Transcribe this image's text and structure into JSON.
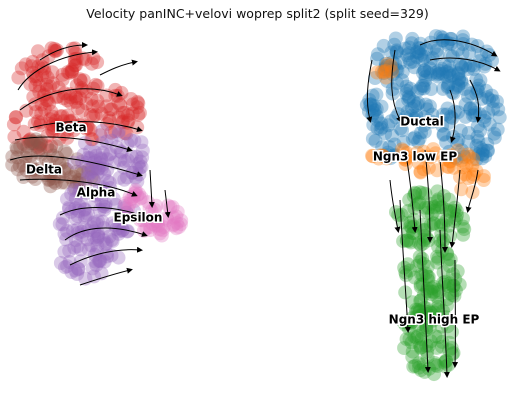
{
  "chart_data": {
    "type": "scatter",
    "title": "Velocity panINC+velovi woprep split2 (split seed=329)",
    "xlabel": "",
    "ylabel": "",
    "grid": false,
    "overlay": "velocity streamlines with arrows",
    "clusters": [
      {
        "name": "Beta",
        "color": "#d62728",
        "label_pos": [
          71,
          128
        ]
      },
      {
        "name": "Delta",
        "color": "#8c564b",
        "label_pos": [
          44,
          170
        ]
      },
      {
        "name": "Alpha",
        "color": "#9467bd",
        "label_pos": [
          96,
          193
        ]
      },
      {
        "name": "Epsilon",
        "color": "#e377c2",
        "label_pos": [
          138,
          218
        ]
      },
      {
        "name": "Ductal",
        "color": "#1f77b4",
        "label_pos": [
          422,
          122
        ]
      },
      {
        "name": "Ngn3 low EP",
        "color": "#ff7f0e",
        "label_pos": [
          415,
          157
        ]
      },
      {
        "name": "Ngn3 high EP",
        "color": "#2ca02c",
        "label_pos": [
          434,
          320
        ]
      }
    ]
  }
}
